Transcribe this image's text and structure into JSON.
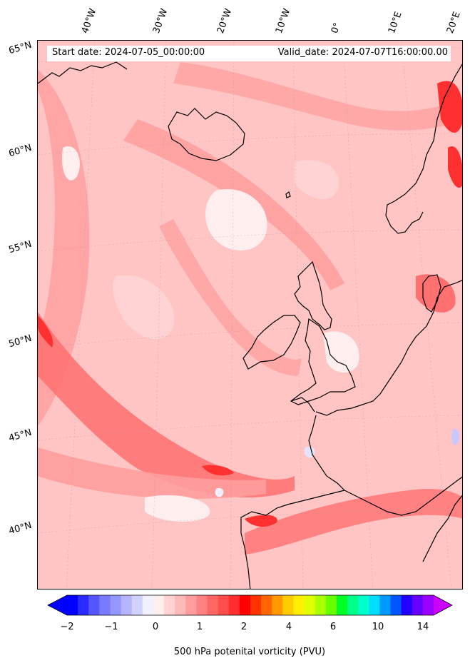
{
  "map": {
    "start_date": "Start date: 2024-07-05_00:00:00",
    "valid_date": "Valid_date: 2024-07-07T16:00:00.00",
    "longitude_labels": [
      "40°W",
      "30°W",
      "20°W",
      "10°W",
      "0°",
      "10°E",
      "20°E"
    ],
    "latitude_labels": [
      "65°N",
      "60°N",
      "55°N",
      "50°N",
      "45°N",
      "40°N"
    ],
    "field_colors": {
      "ocean_base": "#ffc4c4",
      "very_low": "#ffeeee",
      "low": "#ffd3d3",
      "mid": "#ff9d9d",
      "high": "#ff7070",
      "very_high": "#ff3030",
      "extreme": "#ff0000",
      "negative": "#e4e4ff",
      "coastline": "#000000"
    }
  },
  "colorbar": {
    "label": "500 hPa potenital vorticity (PVU)",
    "tick_labels": [
      "−2",
      "−1",
      "0",
      "1",
      "2",
      "4",
      "6",
      "10",
      "14"
    ],
    "colors": [
      "#0000ff",
      "#2a2aff",
      "#5555ff",
      "#7a7aff",
      "#9696ff",
      "#b4b4ff",
      "#d2d2ff",
      "#f0f0ff",
      "#ffeeee",
      "#ffd3d3",
      "#ffb9b9",
      "#ff9d9d",
      "#ff8282",
      "#ff6767",
      "#ff4c4c",
      "#ff2d2d",
      "#ff0000",
      "#ff3300",
      "#ff6600",
      "#ff9900",
      "#ffcc00",
      "#ffee00",
      "#e0ff00",
      "#aaff00",
      "#66ff00",
      "#00ff22",
      "#00ff88",
      "#00ffcc",
      "#00ddff",
      "#0099ff",
      "#0055ff",
      "#2200ff",
      "#6600ff",
      "#9900ff"
    ],
    "under_color": "#0000ff",
    "over_color": "#cc00ff"
  }
}
